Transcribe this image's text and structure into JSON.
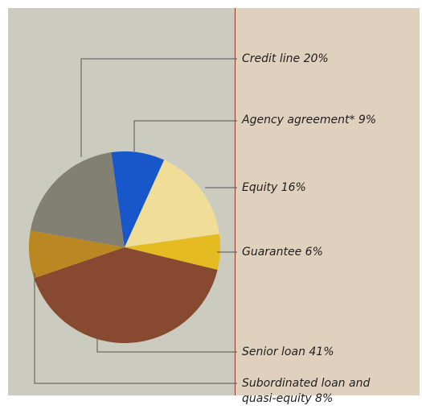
{
  "chart_data": {
    "type": "pie",
    "slices": [
      {
        "label": "Credit line 20%",
        "value": 20,
        "color": "#828073"
      },
      {
        "label": "Agency agreement* 9%",
        "value": 9,
        "color": "#1757c9"
      },
      {
        "label": "Equity 16%",
        "value": 16,
        "color": "#f0de98"
      },
      {
        "label": "Guarantee 6%",
        "value": 6,
        "color": "#e5bb22"
      },
      {
        "label": "Senior loan 41%",
        "value": 41,
        "color": "#874a31"
      },
      {
        "label": "Subordinated loan and\nquasi-equity 8%",
        "value": 8,
        "color": "#b98822"
      }
    ],
    "colors": {
      "left_panel": "#cbcbbf",
      "right_panel": "#e0d1be",
      "divider": "#8b3a1f",
      "leader_line": "#555555"
    }
  }
}
